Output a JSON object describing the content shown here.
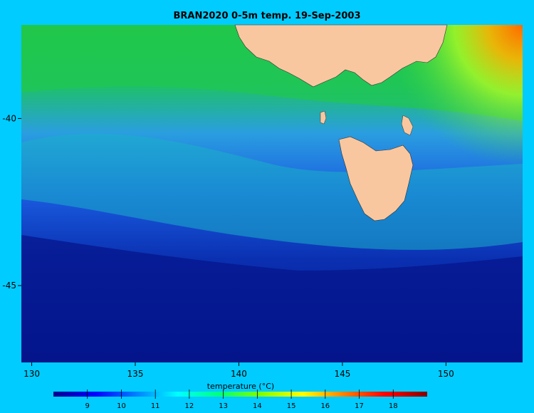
{
  "title": "BRAN2020 0-5m temp. 19-Sep-2003",
  "map": {
    "lon_range": [
      129.5,
      153.7
    ],
    "lat_range": [
      -47.3,
      -37.2
    ],
    "x_ticks": [
      {
        "value": 130,
        "label": "130"
      },
      {
        "value": 135,
        "label": "135"
      },
      {
        "value": 140,
        "label": "140"
      },
      {
        "value": 145,
        "label": "145"
      },
      {
        "value": 150,
        "label": "150"
      }
    ],
    "y_ticks": [
      {
        "value": -40,
        "label": "-40"
      },
      {
        "value": -45,
        "label": "-45"
      }
    ],
    "land_color": "#f9c79f",
    "background_color": "#00ccff"
  },
  "colorbar": {
    "title": "temperature (°C)",
    "range": [
      8,
      19
    ],
    "ticks": [
      {
        "value": 9,
        "label": "9"
      },
      {
        "value": 10,
        "label": "10"
      },
      {
        "value": 11,
        "label": "11"
      },
      {
        "value": 12,
        "label": "12"
      },
      {
        "value": 13,
        "label": "13"
      },
      {
        "value": 14,
        "label": "14"
      },
      {
        "value": 15,
        "label": "15"
      },
      {
        "value": 16,
        "label": "16"
      },
      {
        "value": 17,
        "label": "17"
      },
      {
        "value": 18,
        "label": "18"
      }
    ],
    "colors": [
      "#00008f",
      "#0000ff",
      "#0080ff",
      "#00ffff",
      "#00ff80",
      "#80ff00",
      "#ffff00",
      "#ff8000",
      "#ff0000",
      "#800000"
    ]
  }
}
